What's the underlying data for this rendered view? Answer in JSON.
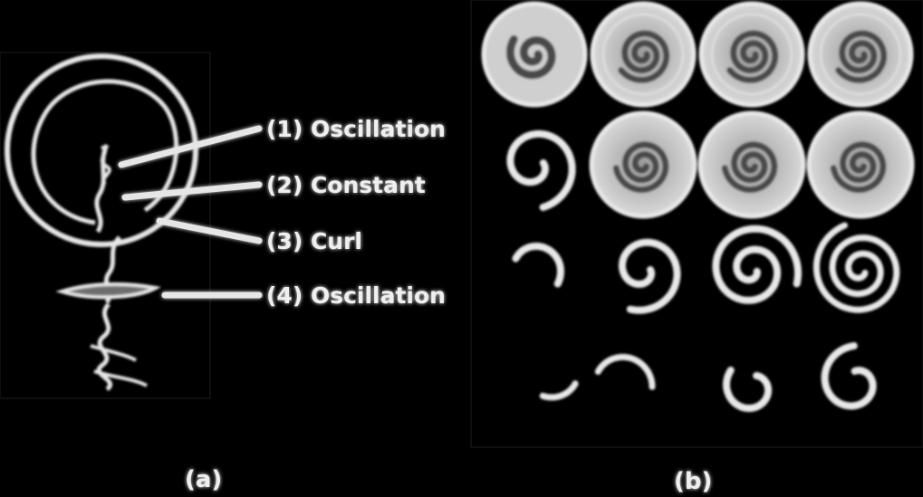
{
  "figure": {
    "panel_a": {
      "caption": "(a)",
      "labels": [
        "(1) Oscillation",
        "(2) Constant",
        "(3) Curl",
        "(4) Oscillation"
      ]
    },
    "panel_b": {
      "caption": "(b)",
      "grid": {
        "rows": 4,
        "cols": 4
      }
    },
    "colors": {
      "background": "#000000",
      "stroke": "#e8e8e8",
      "fill_light": "#cfcfcf",
      "fill_mid": "#8a8a8a"
    }
  }
}
